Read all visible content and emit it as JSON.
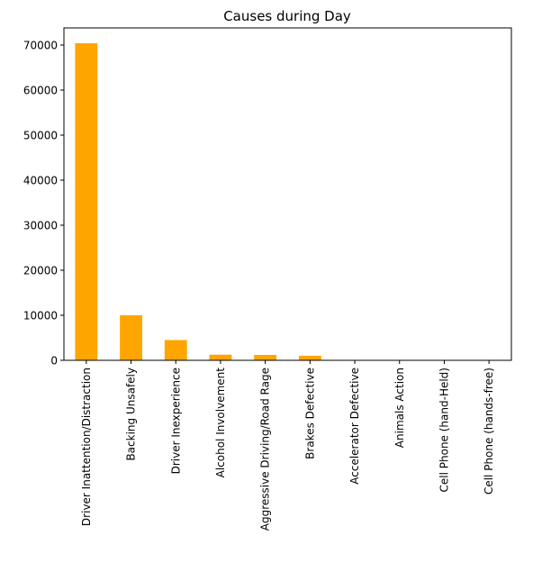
{
  "chart_data": {
    "type": "bar",
    "title": "Causes during Day",
    "xlabel": "",
    "ylabel": "",
    "categories": [
      "Driver Inattention/Distraction",
      "Backing Unsafely",
      "Driver Inexperience",
      "Alcohol Involvement",
      "Aggressive Driving/Road Rage",
      "Brakes Defective",
      "Accelerator Defective",
      "Animals Action",
      "Cell Phone (hand-Held)",
      "Cell Phone (hands-free)"
    ],
    "values": [
      70400,
      10000,
      4500,
      1250,
      1200,
      1000,
      20,
      15,
      10,
      5
    ],
    "ylim": [
      0,
      73800
    ],
    "yticks": [
      0,
      10000,
      20000,
      30000,
      40000,
      50000,
      60000,
      70000
    ],
    "ytick_labels": [
      "0",
      "10000",
      "20000",
      "30000",
      "40000",
      "50000",
      "60000",
      "70000"
    ],
    "grid": false,
    "legend": "none",
    "bar_color": "#ffa500",
    "axis_color": "#000000"
  }
}
